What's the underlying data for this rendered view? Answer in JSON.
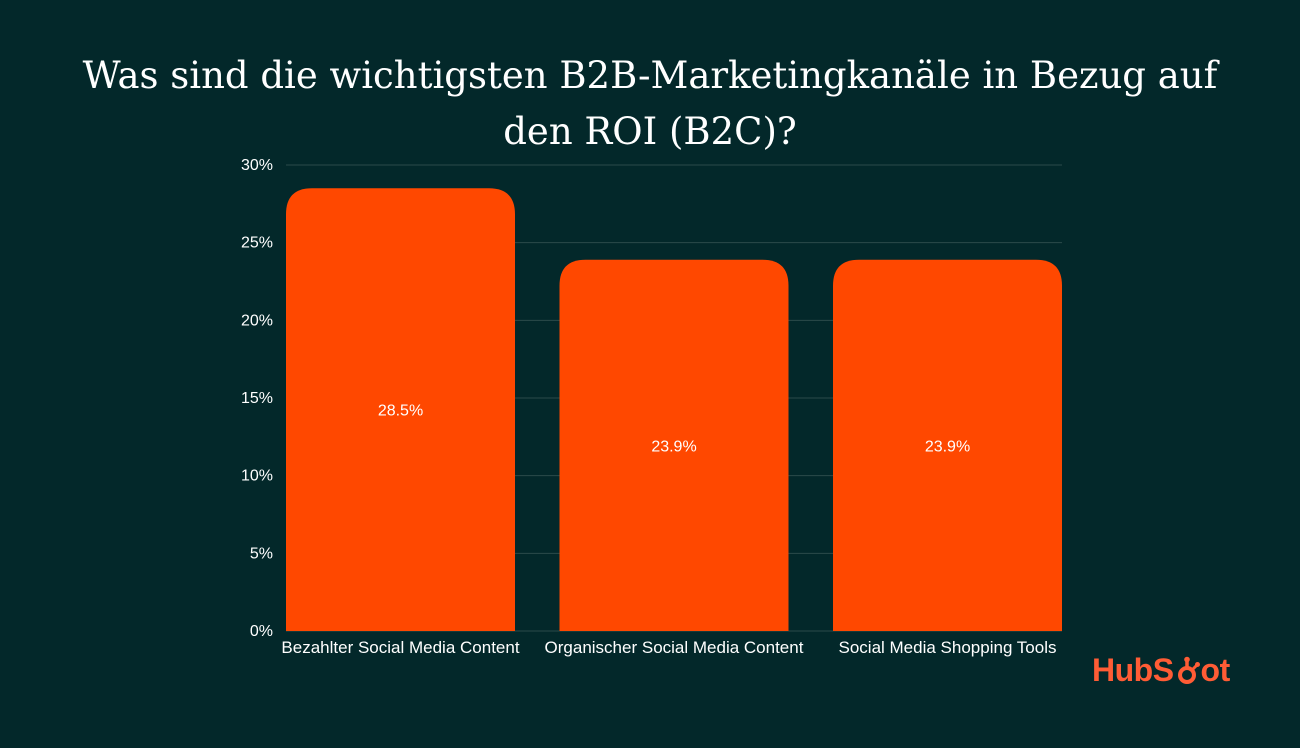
{
  "chart_data": {
    "type": "bar",
    "title_lines": [
      "Was sind die wichtigsten B2B-Marketingkanäle in Bezug auf",
      "den ROI (B2C)?"
    ],
    "categories": [
      "Bezahlter Social Media Content",
      "Organischer Social Media Content",
      "Social Media Shopping Tools"
    ],
    "values": [
      28.5,
      23.9,
      23.9
    ],
    "data_labels": [
      "28.5%",
      "23.9%",
      "23.9%"
    ],
    "yticks": [
      0,
      5,
      10,
      15,
      20,
      25,
      30
    ],
    "ytick_labels": [
      "0%",
      "5%",
      "10%",
      "15%",
      "20%",
      "25%",
      "30%"
    ],
    "ylim": [
      0,
      30
    ],
    "xlabel": "",
    "ylabel": "",
    "grid": true,
    "colors": {
      "bar": "#ff4800",
      "background": "#03282a",
      "grid": "#2b4a4b",
      "text": "#ffffff"
    }
  },
  "brand": {
    "logo_text": "HubSpot",
    "logo_color": "#ff5c35"
  }
}
